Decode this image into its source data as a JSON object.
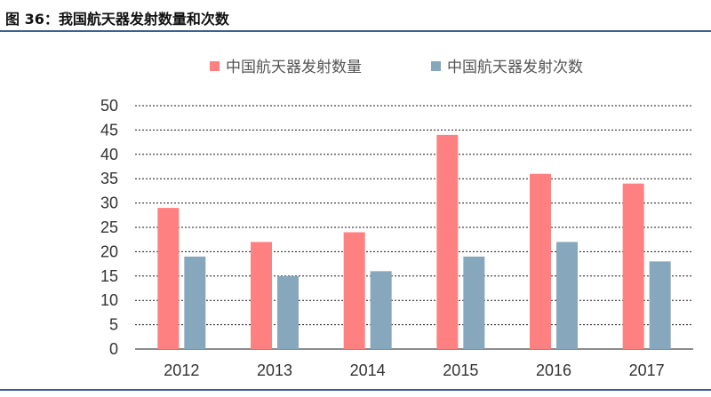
{
  "figure": {
    "title": "图 36：我国航天器发射数量和次数"
  },
  "colors": {
    "rule": "#3f5f8f",
    "gridline": "#1a1a1a"
  },
  "chart_data": {
    "type": "bar",
    "categories": [
      "2012",
      "2013",
      "2014",
      "2015",
      "2016",
      "2017"
    ],
    "series": [
      {
        "name": "中国航天器发射数量",
        "color": "#ff8080",
        "values": [
          29,
          22,
          24,
          44,
          36,
          34
        ]
      },
      {
        "name": "中国航天器发射次数",
        "color": "#87a7bd",
        "values": [
          19,
          15,
          16,
          19,
          22,
          18
        ]
      }
    ],
    "ylim": [
      0,
      50
    ],
    "yticks": [
      0,
      5,
      10,
      15,
      20,
      25,
      30,
      35,
      40,
      45,
      50
    ],
    "grid": true,
    "legend": "top"
  }
}
